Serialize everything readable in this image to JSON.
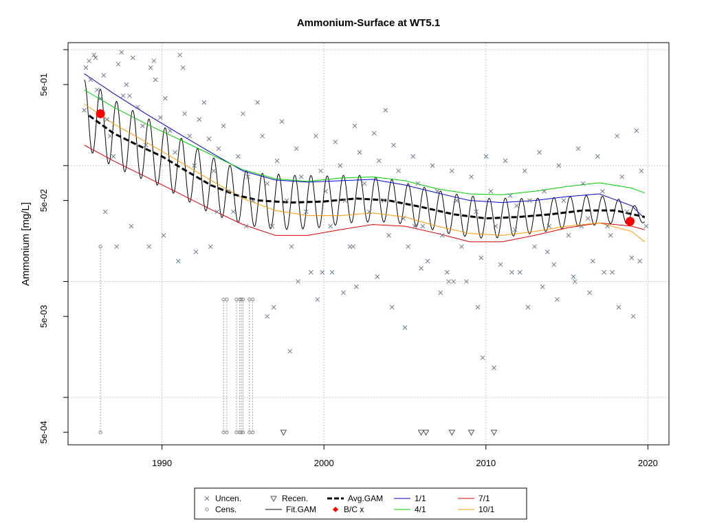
{
  "chart_data": {
    "type": "scatter",
    "title": "Ammonium-Surface at WT5.1",
    "xlabel": "",
    "ylabel": "Ammonium [mg/L]",
    "y_scale": "log10",
    "xlim": [
      1984.2,
      2021.3
    ],
    "ylim": [
      0.00039,
      1.15
    ],
    "grid": true,
    "x_ticks": [
      1990,
      2000,
      2010,
      2020
    ],
    "x_tick_labels": [
      "1990",
      "2000",
      "2010",
      "2020"
    ],
    "y_ticks": [
      0.0005,
      0.005,
      0.05,
      0.5
    ],
    "y_tick_labels": [
      "5e-04",
      "5e-03",
      "5e-02",
      "5e-01"
    ],
    "y_minor_ticks": [
      0.001,
      0.01,
      0.1,
      1
    ],
    "legend": {
      "placement": "bottom-center",
      "entries": [
        {
          "label": "Uncen.",
          "symbol": "x",
          "color": "#6b7a8f"
        },
        {
          "label": "Cens.",
          "symbol": "circle",
          "color": "#888888"
        },
        {
          "label": "Recen.",
          "symbol": "triangle-down",
          "color": "#555555"
        },
        {
          "label": "Fit.GAM",
          "symbol": "line",
          "color": "#000000"
        },
        {
          "label": "Avg.GAM",
          "symbol": "dashed-line",
          "color": "#000000"
        },
        {
          "label": "B/C x",
          "symbol": "diamond",
          "color": "#ff0000"
        },
        {
          "label": "1/1",
          "symbol": "line",
          "color": "#0000cc"
        },
        {
          "label": "4/1",
          "symbol": "line",
          "color": "#00cc00"
        },
        {
          "label": "7/1",
          "symbol": "line",
          "color": "#dd0000"
        },
        {
          "label": "10/1",
          "symbol": "line",
          "color": "#ff9900"
        }
      ]
    },
    "series": [
      {
        "name": "Avg.GAM",
        "color": "#000000",
        "x": [
          1985.5,
          1987,
          1988.5,
          1990,
          1991.5,
          1993,
          1994.5,
          1996,
          1998,
          2000,
          2002,
          2004,
          2006,
          2008,
          2010,
          2012,
          2014,
          2016,
          2018,
          2019.8
        ],
        "y": [
          0.27,
          0.19,
          0.15,
          0.12,
          0.09,
          0.068,
          0.056,
          0.05,
          0.048,
          0.049,
          0.052,
          0.05,
          0.044,
          0.038,
          0.035,
          0.036,
          0.038,
          0.041,
          0.041,
          0.036
        ]
      },
      {
        "name": "1/1",
        "color": "#0000cc",
        "x": [
          1985.2,
          1987,
          1989,
          1991,
          1993,
          1995,
          1997,
          1999,
          2001,
          2003,
          2005,
          2007,
          2009,
          2011,
          2013,
          2015,
          2017,
          2019,
          2019.8
        ],
        "y": [
          0.62,
          0.42,
          0.28,
          0.19,
          0.13,
          0.09,
          0.075,
          0.072,
          0.074,
          0.076,
          0.068,
          0.058,
          0.05,
          0.048,
          0.05,
          0.054,
          0.057,
          0.045,
          0.035
        ]
      },
      {
        "name": "4/1",
        "color": "#00cc00",
        "x": [
          1985.2,
          1987,
          1989,
          1991,
          1993,
          1995,
          1997,
          1999,
          2001,
          2003,
          2005,
          2007,
          2009,
          2011,
          2013,
          2015,
          2017,
          2019,
          2019.8
        ],
        "y": [
          0.45,
          0.32,
          0.23,
          0.17,
          0.125,
          0.092,
          0.077,
          0.073,
          0.078,
          0.08,
          0.074,
          0.063,
          0.057,
          0.056,
          0.06,
          0.066,
          0.071,
          0.064,
          0.058
        ]
      },
      {
        "name": "7/1",
        "color": "#dd0000",
        "x": [
          1985.2,
          1987,
          1989,
          1991,
          1993,
          1995,
          1997,
          1999,
          2001,
          2003,
          2005,
          2007,
          2009,
          2011,
          2013,
          2015,
          2017,
          2019,
          2019.8
        ],
        "y": [
          0.15,
          0.11,
          0.08,
          0.058,
          0.042,
          0.031,
          0.025,
          0.025,
          0.028,
          0.031,
          0.03,
          0.026,
          0.022,
          0.022,
          0.025,
          0.029,
          0.032,
          0.03,
          0.028
        ]
      },
      {
        "name": "10/1",
        "color": "#ff9900",
        "x": [
          1985.2,
          1987,
          1989,
          1991,
          1993,
          1995,
          1997,
          1999,
          2001,
          2003,
          2005,
          2007,
          2009,
          2011,
          2013,
          2015,
          2017,
          2019,
          2019.8
        ],
        "y": [
          0.34,
          0.23,
          0.16,
          0.11,
          0.075,
          0.052,
          0.041,
          0.037,
          0.037,
          0.039,
          0.036,
          0.03,
          0.026,
          0.025,
          0.027,
          0.03,
          0.032,
          0.027,
          0.022
        ]
      },
      {
        "name": "B/C x",
        "color": "#ff0000",
        "x": [
          1986.2,
          2018.9
        ],
        "y": [
          0.28,
          0.033
        ]
      },
      {
        "name": "Cens.",
        "color": "#888888",
        "x": [
          1986.2,
          1993.8,
          1994.0,
          1994.6,
          1994.8,
          1994.9,
          1995.0,
          1995.4,
          1995.6
        ],
        "y_low": [
          0.0005,
          0.0005,
          0.0005,
          0.0005,
          0.0005,
          0.0005,
          0.0005,
          0.0005,
          0.0005
        ],
        "y_high": [
          0.02,
          0.007,
          0.007,
          0.007,
          0.007,
          0.007,
          0.007,
          0.007,
          0.007
        ]
      },
      {
        "name": "Recen.",
        "color": "#555555",
        "x": [
          1997.5,
          2006.0,
          2006.3,
          2007.9,
          2009.1,
          2010.5
        ],
        "y": [
          0.0005,
          0.0005,
          0.0005,
          0.0005,
          0.0005,
          0.0005
        ]
      },
      {
        "name": "Uncen.",
        "color": "#6b7a8f",
        "x": [
          1985.2,
          1985.3,
          1985.5,
          1985.6,
          1985.8,
          1986.0,
          1986.2,
          1986.4,
          1986.6,
          1986.8,
          1987.0,
          1987.3,
          1987.5,
          1987.8,
          1988.0,
          1988.2,
          1988.5,
          1988.8,
          1989.0,
          1989.3,
          1989.6,
          1989.9,
          1990.2,
          1990.5,
          1990.8,
          1991.1,
          1991.4,
          1991.7,
          1992.0,
          1992.3,
          1992.6,
          1992.9,
          1993.2,
          1993.5,
          1993.8,
          1994.1,
          1994.4,
          1994.7,
          1995.0,
          1995.3,
          1995.6,
          1995.9,
          1996.2,
          1996.5,
          1996.8,
          1997.1,
          1997.4,
          1997.7,
          1998.0,
          1998.3,
          1998.6,
          1998.9,
          1999.2,
          1999.5,
          1999.8,
          2000.1,
          2000.4,
          2000.7,
          2001.0,
          2001.3,
          2001.6,
          2001.9,
          2002.2,
          2002.5,
          2002.8,
          2003.1,
          2003.4,
          2003.7,
          2004.0,
          2004.3,
          2004.6,
          2004.9,
          2005.2,
          2005.5,
          2005.8,
          2006.1,
          2006.4,
          2006.7,
          2007.0,
          2007.3,
          2007.6,
          2007.9,
          2008.2,
          2008.5,
          2008.8,
          2009.1,
          2009.4,
          2009.7,
          2010.0,
          2010.3,
          2010.6,
          2010.9,
          2011.2,
          2011.5,
          2011.8,
          2012.1,
          2012.4,
          2012.7,
          2013.0,
          2013.3,
          2013.6,
          2013.9,
          2014.2,
          2014.5,
          2014.8,
          2015.1,
          2015.4,
          2015.7,
          2016.0,
          2016.3,
          2016.6,
          2016.9,
          2017.2,
          2017.5,
          2017.8,
          2018.1,
          2018.4,
          2018.7,
          2019.0,
          2019.3,
          2019.6,
          2019.9,
          1986.5,
          1987.2,
          1988.1,
          1989.2,
          1990.1,
          1991.0,
          1992.1,
          1993.0,
          1996.5,
          1996.9,
          1998.4,
          1999.6,
          2000.5,
          2001.2,
          2002.0,
          2003.3,
          2004.2,
          2005.0,
          2006.0,
          2007.2,
          2008.0,
          2009.5,
          2010.5,
          2011.6,
          2012.6,
          2013.5,
          2014.4,
          2015.5,
          2016.4,
          2017.3,
          2018.2,
          2019.1,
          1985.9,
          1987.6,
          1989.5,
          1991.3,
          1993.4,
          1995.2,
          1997.9,
          1999.9,
          2001.8,
          2003.8,
          2005.6,
          2007.7,
          2009.8,
          2011.9,
          2013.8,
          2015.9,
          2017.7,
          2019.5
        ],
        "y": [
          0.3,
          0.7,
          0.8,
          0.55,
          0.9,
          0.45,
          0.38,
          0.6,
          0.25,
          0.18,
          0.12,
          0.75,
          0.95,
          0.5,
          0.4,
          0.85,
          0.32,
          0.22,
          0.15,
          0.7,
          0.55,
          0.26,
          0.38,
          0.2,
          0.13,
          0.9,
          0.28,
          0.18,
          0.1,
          0.25,
          0.35,
          0.17,
          0.09,
          0.14,
          0.22,
          0.06,
          0.04,
          0.12,
          0.28,
          0.08,
          0.05,
          0.35,
          0.18,
          0.07,
          0.03,
          0.11,
          0.24,
          0.05,
          0.02,
          0.14,
          0.08,
          0.04,
          0.012,
          0.18,
          0.09,
          0.06,
          0.03,
          0.16,
          0.1,
          0.05,
          0.02,
          0.22,
          0.13,
          0.07,
          0.04,
          0.19,
          0.11,
          0.05,
          0.025,
          0.15,
          0.09,
          0.035,
          0.02,
          0.12,
          0.07,
          0.03,
          0.015,
          0.1,
          0.06,
          0.025,
          0.012,
          0.09,
          0.05,
          0.02,
          0.01,
          0.08,
          0.04,
          0.016,
          0.12,
          0.06,
          0.03,
          0.014,
          0.11,
          0.055,
          0.028,
          0.012,
          0.09,
          0.05,
          0.02,
          0.13,
          0.06,
          0.03,
          0.014,
          0.1,
          0.05,
          0.025,
          0.011,
          0.14,
          0.07,
          0.035,
          0.015,
          0.12,
          0.06,
          0.03,
          0.012,
          0.18,
          0.08,
          0.04,
          0.016,
          0.2,
          0.09,
          0.03,
          0.04,
          0.02,
          0.03,
          0.02,
          0.025,
          0.015,
          0.018,
          0.02,
          0.005,
          0.006,
          0.01,
          0.007,
          0.012,
          0.008,
          0.009,
          0.011,
          0.006,
          0.004,
          0.013,
          0.008,
          0.01,
          0.006,
          0.0018,
          0.012,
          0.006,
          0.009,
          0.007,
          0.01,
          0.008,
          0.012,
          0.006,
          0.005,
          0.85,
          0.4,
          0.8,
          0.7,
          0.04,
          0.03,
          0.0025,
          0.012,
          0.02,
          0.3,
          0.03,
          0.01,
          0.0022,
          0.045,
          0.018,
          0.03,
          0.025,
          0.015
        ]
      }
    ]
  }
}
